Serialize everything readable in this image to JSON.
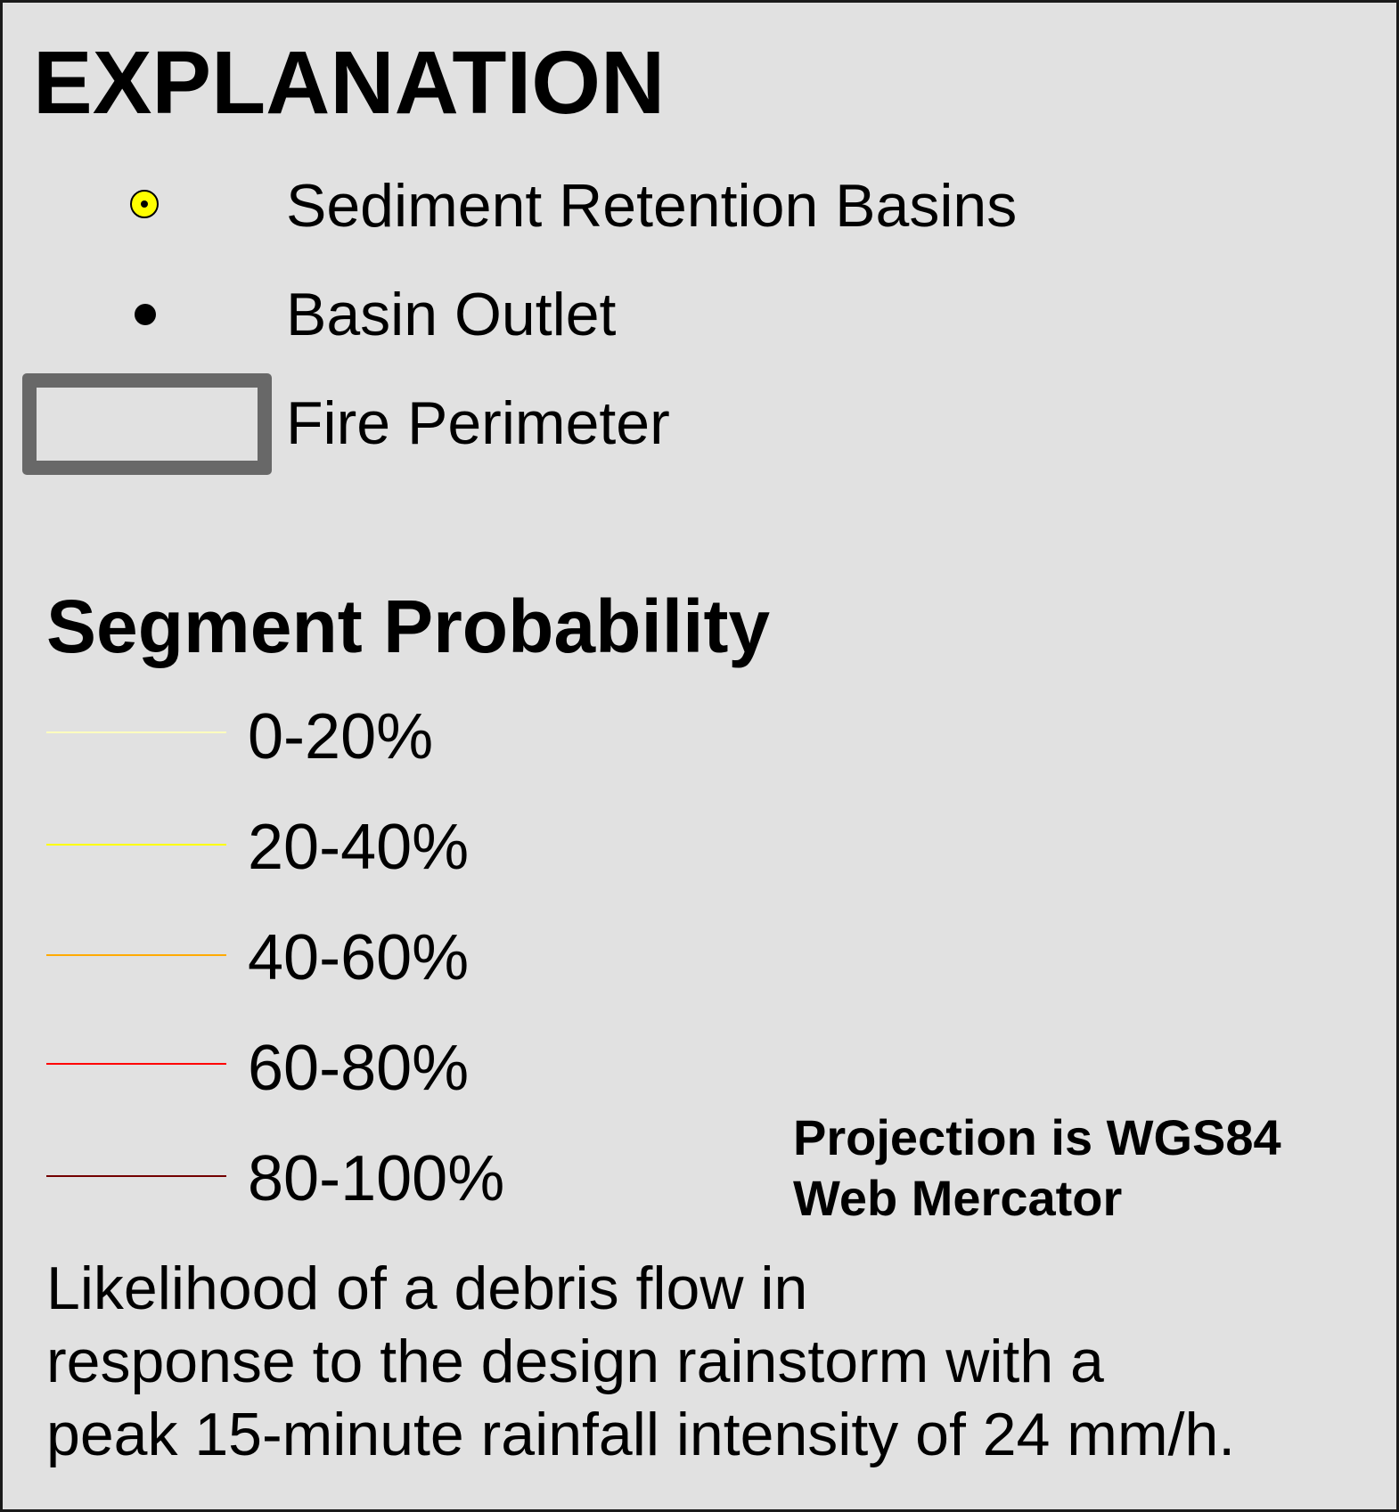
{
  "legend": {
    "title": "EXPLANATION",
    "items": [
      {
        "label": "Sediment Retention Basins",
        "symbol": "yellow-circle-dot-icon",
        "fill": "#ffff00"
      },
      {
        "label": "Basin Outlet",
        "symbol": "black-dot-icon",
        "fill": "#000000"
      },
      {
        "label": "Fire Perimeter",
        "symbol": "gray-outline-rectangle",
        "stroke": "#686868"
      }
    ]
  },
  "segment_probability": {
    "title": "Segment Probability",
    "classes": [
      {
        "label": "0-20%",
        "color": "#ffffbe"
      },
      {
        "label": "20-40%",
        "color": "#ffff00"
      },
      {
        "label": "40-60%",
        "color": "#ffaa00"
      },
      {
        "label": "60-80%",
        "color": "#ff0000"
      },
      {
        "label": "80-100%",
        "color": "#730000"
      }
    ]
  },
  "projection": {
    "line1": "Projection is WGS84",
    "line2": "Web Mercator"
  },
  "note": {
    "line1": "Likelihood of a debris flow in",
    "line2": "response to the design rainstorm with a",
    "line3": "peak 15-minute rainfall intensity of 24 mm/h."
  }
}
